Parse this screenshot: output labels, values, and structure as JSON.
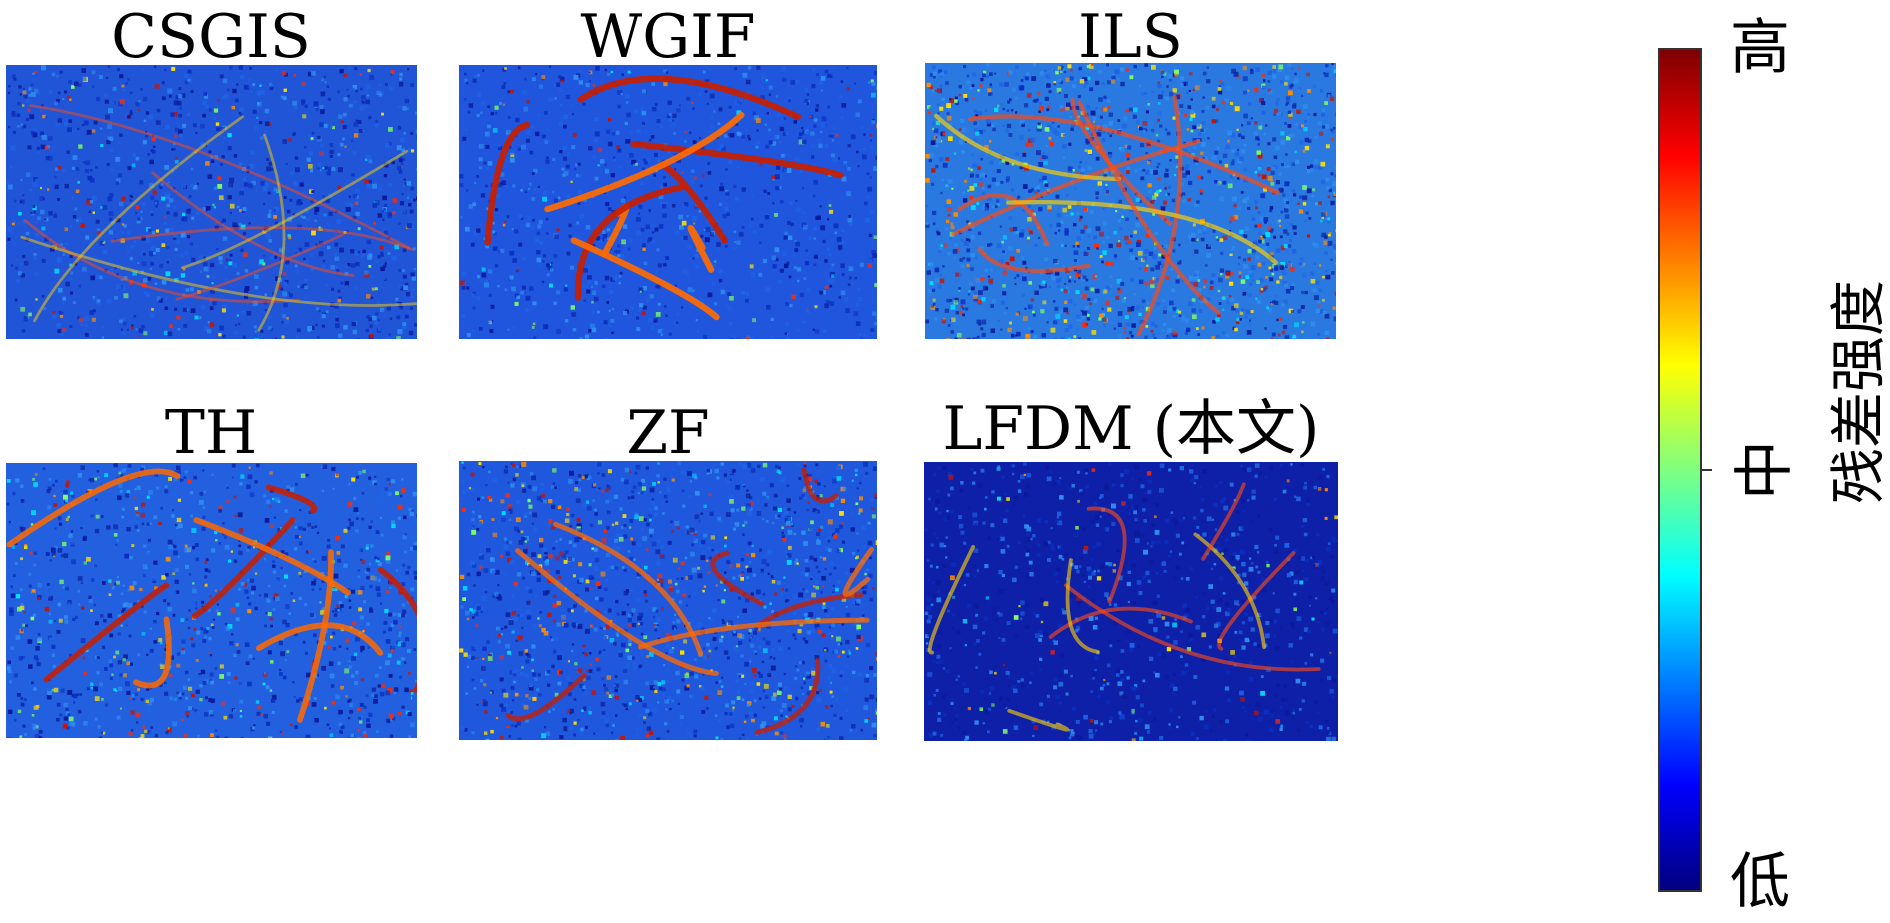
{
  "panels": [
    {
      "id": "csgis",
      "title": "CSGIS",
      "noise": 0.35,
      "line_strength": 0.25,
      "base": "#2155d8"
    },
    {
      "id": "wgif",
      "title": "WGIF",
      "noise": 0.2,
      "line_strength": 0.95,
      "base": "#1f56dd"
    },
    {
      "id": "ils",
      "title": "ILS",
      "noise": 0.7,
      "line_strength": 0.55,
      "base": "#2a79e0"
    },
    {
      "id": "th",
      "title": "TH",
      "noise": 0.45,
      "line_strength": 0.85,
      "base": "#2260e0"
    },
    {
      "id": "zf",
      "title": "ZF",
      "noise": 0.55,
      "line_strength": 0.7,
      "base": "#1f58dc"
    },
    {
      "id": "lfdm",
      "title": "LFDM (本文)",
      "noise": 0.15,
      "line_strength": 0.45,
      "base": "#0e1fa8"
    }
  ],
  "colorbar": {
    "high_label": "高",
    "mid_label": "中",
    "low_label": "低",
    "axis_label": "残差强度",
    "colormap": [
      "#7f0000",
      "#ff0000",
      "#ff7f00",
      "#ffff00",
      "#7fff7f",
      "#00ffff",
      "#007fff",
      "#0000ff",
      "#00007f"
    ]
  }
}
